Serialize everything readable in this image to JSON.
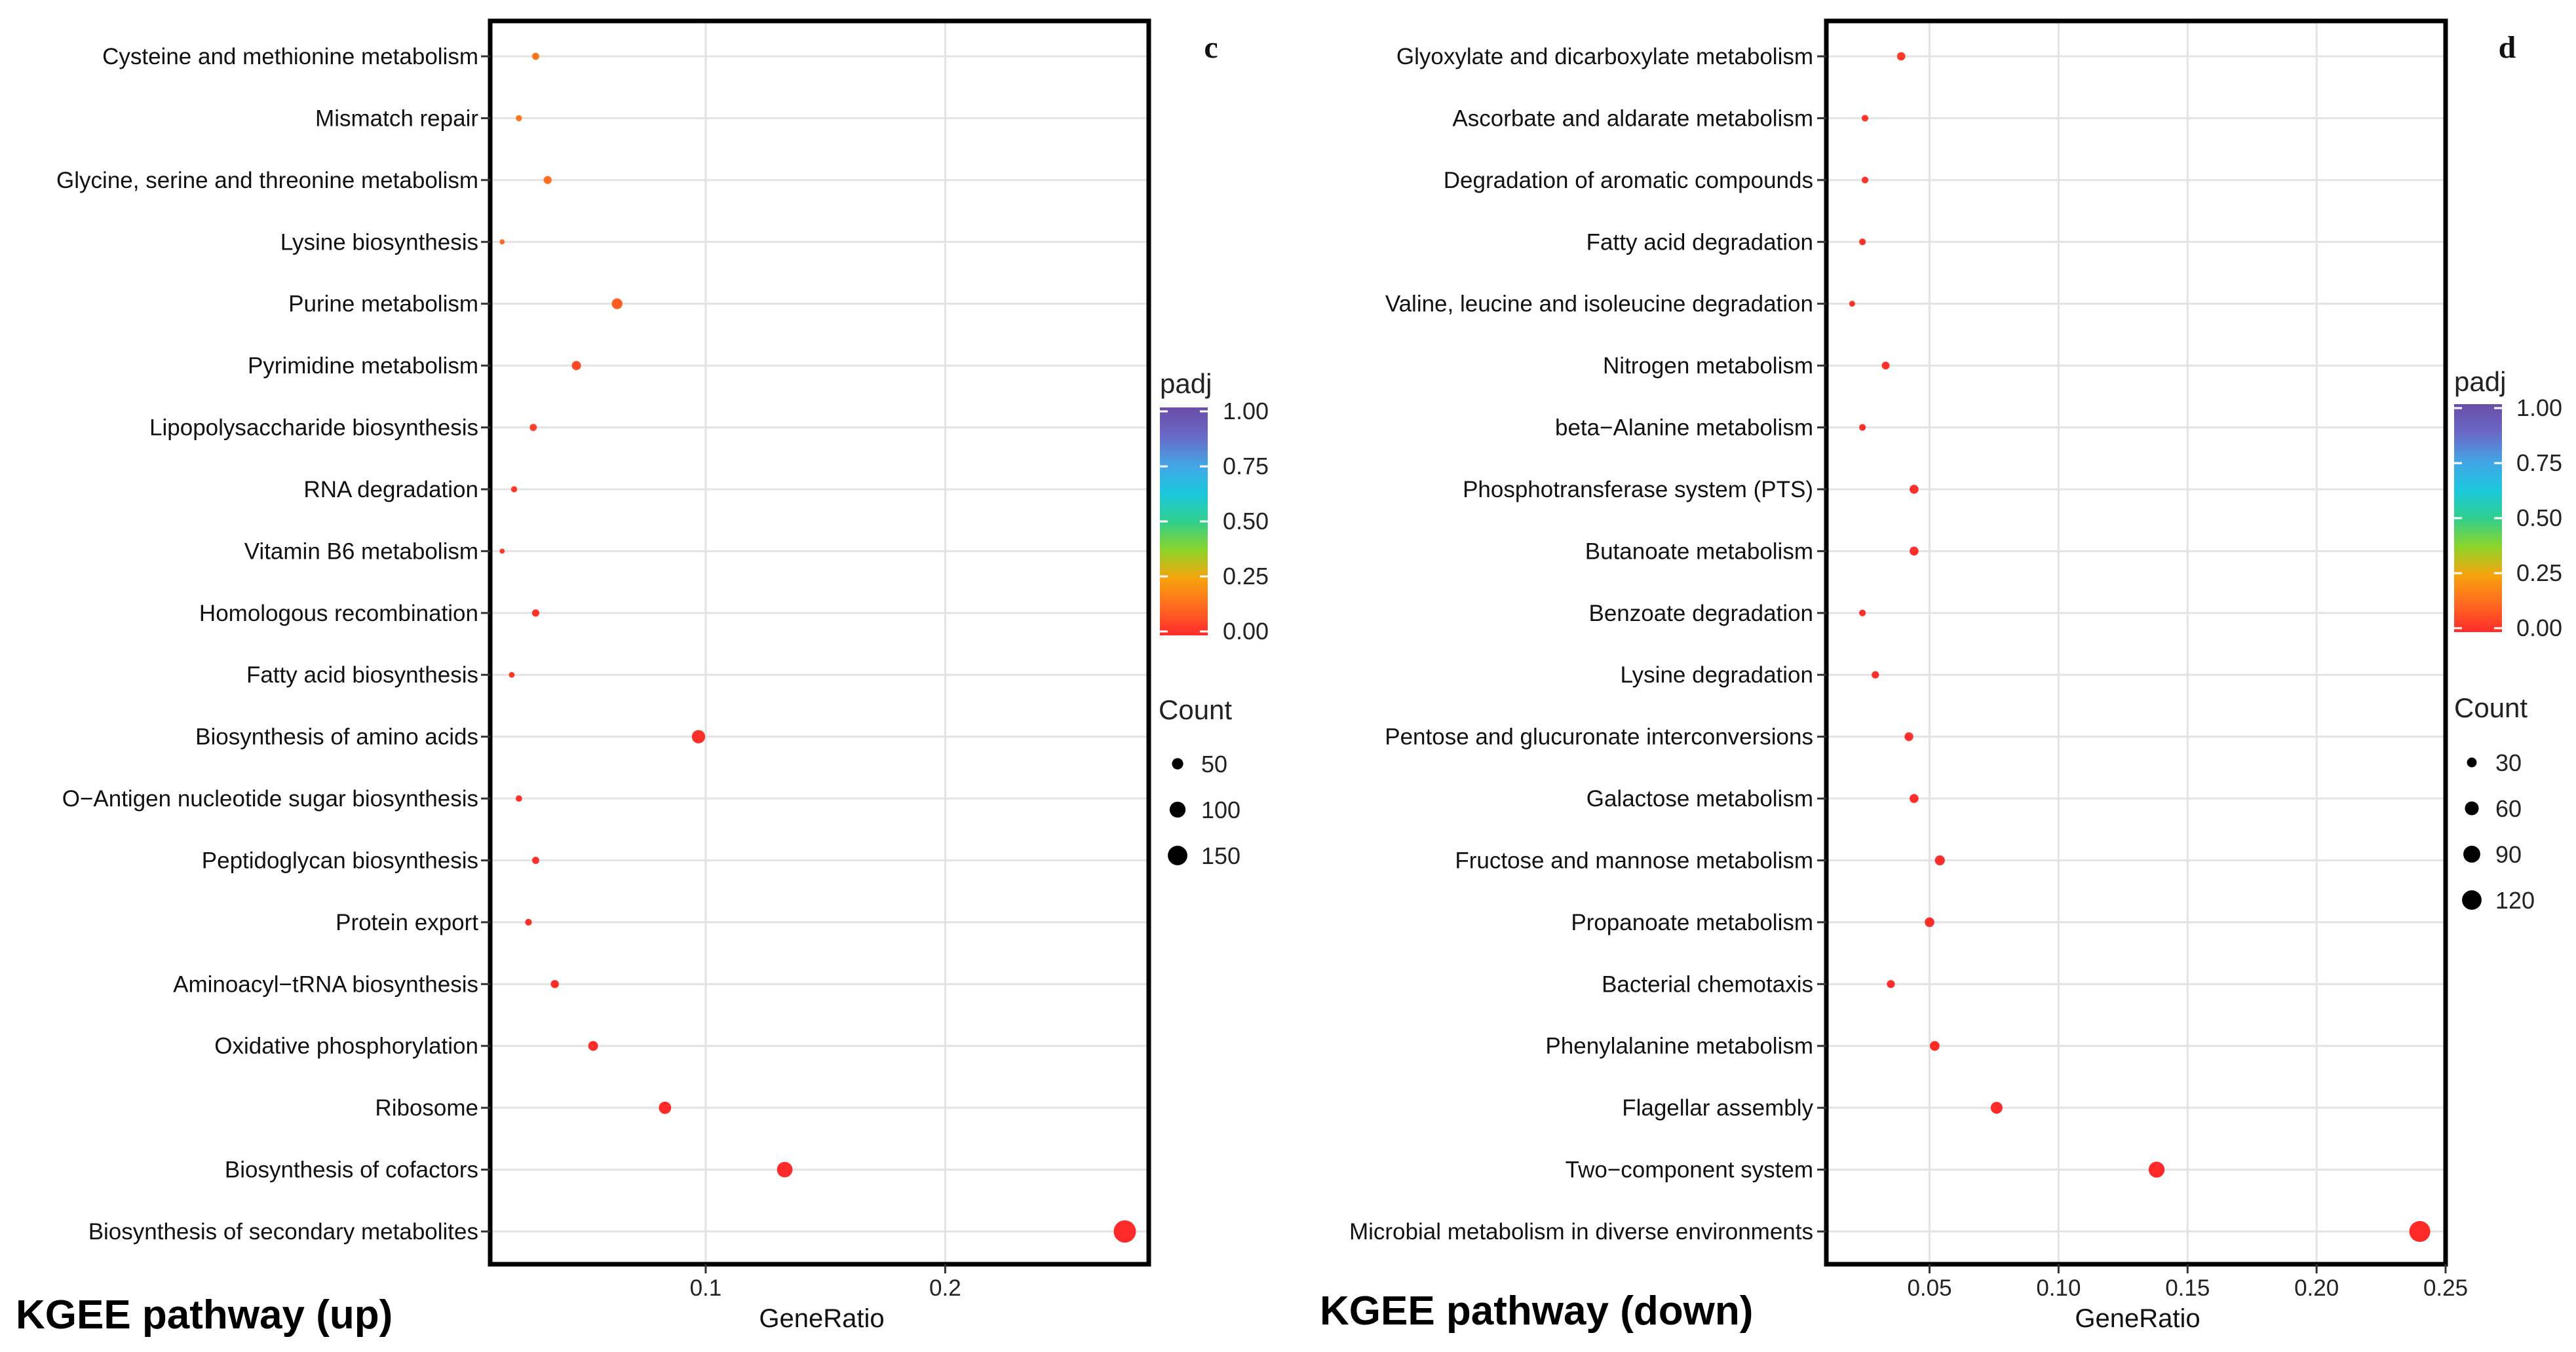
{
  "chart_data": [
    {
      "type": "scatter",
      "panel_label": "c",
      "caption": "KGEE pathway (up)",
      "xlabel": "GeneRatio",
      "ylabel": "",
      "xlim": [
        0.01,
        0.285
      ],
      "xticks": [
        0.1,
        0.2
      ],
      "xtick_labels": [
        "0.1",
        "0.2"
      ],
      "grid": true,
      "categories": [
        "Cysteine and methionine metabolism",
        "Mismatch repair",
        "Glycine, serine and threonine metabolism",
        "Lysine biosynthesis",
        "Purine metabolism",
        "Pyrimidine metabolism",
        "Lipopolysaccharide biosynthesis",
        "RNA degradation",
        "Vitamin B6 metabolism",
        "Homologous recombination",
        "Fatty acid biosynthesis",
        "Biosynthesis of amino acids",
        "O−Antigen nucleotide sugar biosynthesis",
        "Peptidoglycan biosynthesis",
        "Protein export",
        "Aminoacyl−tRNA biosynthesis",
        "Oxidative phosphorylation",
        "Ribosome",
        "Biosynthesis of cofactors",
        "Biosynthesis of secondary metabolites"
      ],
      "gene_ratio": [
        0.029,
        0.022,
        0.034,
        0.015,
        0.063,
        0.046,
        0.028,
        0.02,
        0.015,
        0.029,
        0.019,
        0.097,
        0.022,
        0.029,
        0.026,
        0.037,
        0.053,
        0.083,
        0.133,
        0.275
      ],
      "count": [
        20,
        15,
        25,
        10,
        45,
        33,
        20,
        15,
        10,
        21,
        13,
        70,
        16,
        20,
        18,
        26,
        38,
        60,
        95,
        195
      ],
      "padj": [
        0.15,
        0.15,
        0.13,
        0.12,
        0.1,
        0.06,
        0.04,
        0.03,
        0.03,
        0.02,
        0.02,
        0.01,
        0.01,
        0.01,
        0.01,
        0.005,
        0.005,
        0.0,
        0.0,
        0.0
      ],
      "legend": {
        "color_title": "padj",
        "color_ticks": [
          "1.00",
          "0.75",
          "0.50",
          "0.25",
          "0.00"
        ],
        "size_title": "Count",
        "size_values": [
          50,
          100,
          150
        ],
        "size_labels": [
          "50",
          "100",
          "150"
        ]
      }
    },
    {
      "type": "scatter",
      "panel_label": "d",
      "caption": "KGEE pathway (down)",
      "xlabel": "GeneRatio",
      "ylabel": "",
      "xlim": [
        0.01,
        0.25
      ],
      "xticks": [
        0.05,
        0.1,
        0.15,
        0.2,
        0.25
      ],
      "xtick_labels": [
        "0.05",
        "0.10",
        "0.15",
        "0.20",
        "0.25"
      ],
      "grid": true,
      "categories": [
        "Glyoxylate and dicarboxylate metabolism",
        "Ascorbate and aldarate metabolism",
        "Degradation of aromatic compounds",
        "Fatty acid degradation",
        "Valine, leucine and isoleucine degradation",
        "Nitrogen metabolism",
        "beta−Alanine metabolism",
        "Phosphotransferase system (PTS)",
        "Butanoate metabolism",
        "Benzoate degradation",
        "Lysine degradation",
        "Pentose and glucuronate interconversions",
        "Galactose metabolism",
        "Fructose and mannose metabolism",
        "Propanoate metabolism",
        "Bacterial chemotaxis",
        "Phenylalanine metabolism",
        "Flagellar assembly",
        "Two−component system",
        "Microbial metabolism in diverse environments"
      ],
      "gene_ratio": [
        0.039,
        0.025,
        0.025,
        0.024,
        0.02,
        0.033,
        0.024,
        0.044,
        0.044,
        0.024,
        0.029,
        0.042,
        0.044,
        0.054,
        0.05,
        0.035,
        0.052,
        0.076,
        0.138,
        0.24
      ],
      "count": [
        22,
        14,
        14,
        14,
        11,
        19,
        14,
        25,
        25,
        14,
        17,
        24,
        25,
        31,
        29,
        20,
        30,
        44,
        80,
        138
      ],
      "padj": [
        0.03,
        0.02,
        0.02,
        0.02,
        0.02,
        0.01,
        0.01,
        0.01,
        0.01,
        0.01,
        0.01,
        0.01,
        0.01,
        0.005,
        0.005,
        0.005,
        0.005,
        0.0,
        0.0,
        0.0
      ],
      "legend": {
        "color_title": "padj",
        "color_ticks": [
          "1.00",
          "0.75",
          "0.50",
          "0.25",
          "0.00"
        ],
        "size_title": "Count",
        "size_values": [
          30,
          60,
          90,
          120
        ],
        "size_labels": [
          "30",
          "60",
          "90",
          "120"
        ]
      }
    }
  ],
  "colors": {
    "scale": [
      "#ff2b2b",
      "#ff6a20",
      "#f7a30c",
      "#8cd42a",
      "#2fd08e",
      "#1bc7de",
      "#44a4e6",
      "#6a68c6",
      "#6a4ea8"
    ],
    "frame": "#000000",
    "grid": "#e3e3e3"
  }
}
